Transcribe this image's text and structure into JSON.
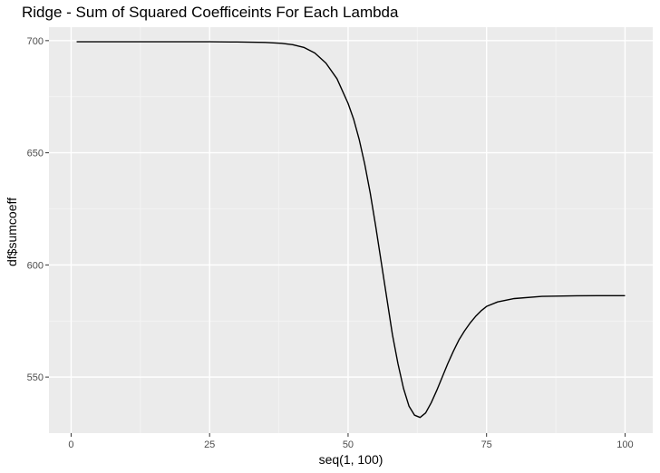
{
  "chart_data": {
    "type": "line",
    "title": "Ridge - Sum of Squared Coefficeints For Each Lambda",
    "xlabel": "seq(1, 100)",
    "ylabel": "df$sumcoeff",
    "xlim": [
      -4,
      105
    ],
    "ylim": [
      525,
      706
    ],
    "x_ticks": [
      0,
      25,
      50,
      75,
      100
    ],
    "x_tick_labels": [
      "0",
      "25",
      "50",
      "75",
      "100"
    ],
    "y_ticks": [
      550,
      600,
      650,
      700
    ],
    "y_tick_labels": [
      "550",
      "600",
      "650",
      "700"
    ],
    "grid": true,
    "background": "#ebebeb",
    "line_color": "#000000",
    "series": [
      {
        "x": [
          1,
          10,
          20,
          25,
          30,
          35,
          38,
          40,
          42,
          44,
          46,
          48,
          50,
          51,
          52,
          53,
          54,
          55,
          56,
          57,
          58,
          59,
          60,
          61,
          62,
          63,
          64,
          65,
          66,
          67,
          68,
          69,
          70,
          71,
          72,
          73,
          74,
          75,
          77,
          80,
          85,
          90,
          95,
          100
        ],
        "y": [
          699.5,
          699.5,
          699.5,
          699.5,
          699.4,
          699.2,
          698.8,
          698.2,
          697.0,
          694.5,
          690.0,
          683.0,
          672.0,
          665.0,
          656.0,
          645.0,
          632.0,
          617.0,
          601.0,
          585.0,
          569.0,
          556.0,
          545.0,
          537.0,
          533.0,
          532.0,
          534.0,
          538.5,
          544.0,
          550.0,
          556.0,
          561.5,
          566.5,
          570.5,
          574.0,
          577.0,
          579.5,
          581.5,
          583.5,
          585.0,
          586.0,
          586.2,
          586.3,
          586.3
        ]
      }
    ]
  }
}
